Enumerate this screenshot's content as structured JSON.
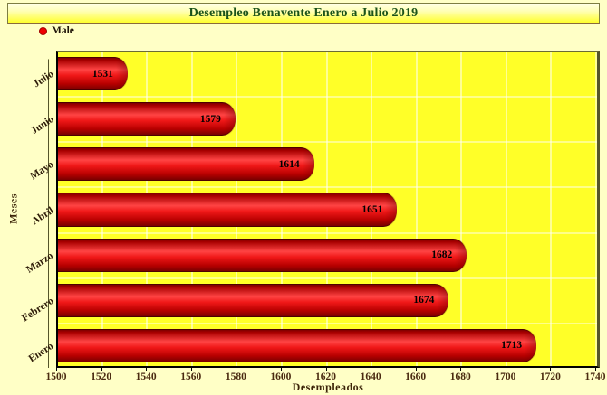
{
  "title_banner": {
    "text": "Desempleo Benavente Enero a Julio 2019"
  },
  "legend": {
    "position": "top-left",
    "items": [
      {
        "label": "Male",
        "color": "#ee0000"
      }
    ]
  },
  "colors": {
    "page_background": "#ffffc6",
    "plot_background": "#ffff28",
    "bar_red": "#e60000",
    "title_text": "#1a521a",
    "axis_label_text": "#4a2a10"
  },
  "chart_data": {
    "type": "bar",
    "orientation": "horizontal",
    "style": "3d-cylinder",
    "title": "Desempleo Benavente Enero a Julio 2019",
    "categories": [
      "Enero",
      "Febrero",
      "Marzo",
      "Abril",
      "Mayo",
      "Junio",
      "Julio"
    ],
    "series": [
      {
        "name": "Male",
        "color": "#ee0000",
        "values": [
          1713,
          1674,
          1682,
          1651,
          1614,
          1579,
          1531
        ]
      }
    ],
    "category_order": "first-category-at-bottom",
    "xlabel": "Desempleados",
    "ylabel": "Meses",
    "xlim": [
      1500,
      1740
    ],
    "xtick_step": 20,
    "xtick_labels": [
      "1500",
      "1520",
      "1540",
      "1560",
      "1580",
      "1600",
      "1620",
      "1640",
      "1660",
      "1680",
      "1700",
      "1720",
      "1740"
    ],
    "grid": true,
    "bar_value_labels": true,
    "legend_position": "top-left"
  }
}
